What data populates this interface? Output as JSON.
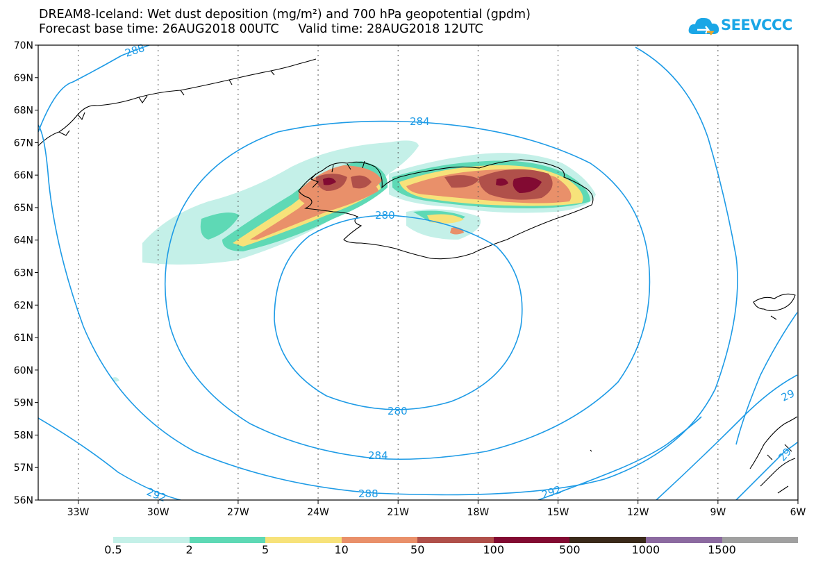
{
  "title_line1": "DREAM8-Iceland: Wet dust deposition (mg/m²) and 700 hPa geopotential (gpdm)",
  "title_line2": "Forecast base time: 26AUG2018 00UTC     Valid time: 28AUG2018 12UTC",
  "logo_text": "SEEVCCC",
  "colors": {
    "contour": "#1e9be6",
    "grid": "#555555",
    "coast": "#000000"
  },
  "map_data": {
    "lon_range": [
      -34.5,
      -6
    ],
    "lat_range": [
      56,
      70
    ],
    "lon_ticks": [
      "33W",
      "30W",
      "27W",
      "24W",
      "21W",
      "18W",
      "15W",
      "12W",
      "9W",
      "6W"
    ],
    "lat_ticks": [
      "70N",
      "69N",
      "68N",
      "67N",
      "66N",
      "65N",
      "64N",
      "63N",
      "62N",
      "61N",
      "60N",
      "59N",
      "58N",
      "57N",
      "56N"
    ],
    "contour_labels": [
      "288",
      "284",
      "280",
      "280",
      "284",
      "288",
      "292",
      "292",
      "29",
      "29"
    ]
  },
  "legend": {
    "labels": [
      "0.5",
      "2",
      "5",
      "10",
      "50",
      "100",
      "500",
      "1000",
      "1500"
    ],
    "colors": [
      "#c4f0e8",
      "#5ed9b5",
      "#f7e27a",
      "#e9906a",
      "#b0504a",
      "#820a32",
      "#3a2a1a",
      "#8c6aa0",
      "#a0a0a0"
    ]
  }
}
